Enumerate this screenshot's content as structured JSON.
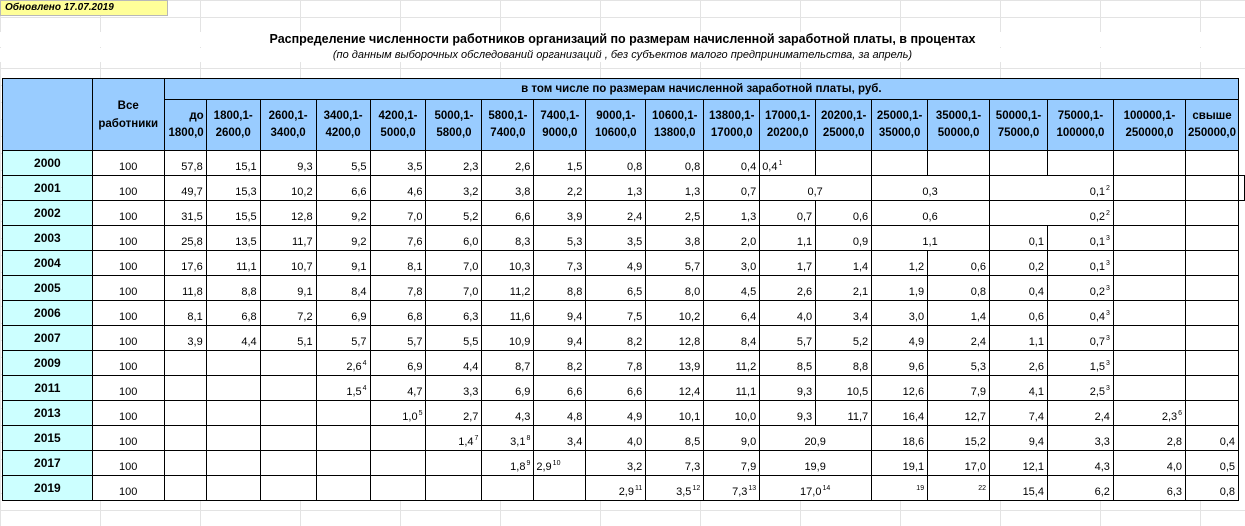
{
  "updated_label": "Обновлено 17.07.2019",
  "title": "Распределение численности работников организаций по размерам начисленной заработной платы, в процентах",
  "subtitle": "(по данным  выборочных обследований организаций , без субъектов малого предпринимательства, за апрель)",
  "header": {
    "all_workers": "Все работники",
    "span_label": "в том числе по размерам начисленной заработной платы, руб.",
    "ranges": [
      [
        "до",
        "1800,0"
      ],
      [
        "1800,1-",
        "2600,0"
      ],
      [
        "2600,1-",
        "3400,0"
      ],
      [
        "3400,1-",
        "4200,0"
      ],
      [
        "4200,1-",
        "5000,0"
      ],
      [
        "5000,1-",
        "5800,0"
      ],
      [
        "5800,1-",
        "7400,0"
      ],
      [
        "7400,1-",
        "9000,0"
      ],
      [
        "9000,1-",
        "10600,0"
      ],
      [
        "10600,1-",
        "13800,0"
      ],
      [
        "13800,1-",
        "17000,0"
      ],
      [
        "17000,1-",
        "20200,0"
      ],
      [
        "20200,1-",
        "25000,0"
      ],
      [
        "25000,1-",
        "35000,0"
      ],
      [
        "35000,1-",
        "50000,0"
      ],
      [
        "50000,1-",
        "75000,0"
      ],
      [
        "75000,1-",
        "100000,0"
      ],
      [
        "100000,1-",
        "250000,0"
      ],
      [
        "свыше",
        "250000,0"
      ]
    ]
  },
  "rows": [
    {
      "year": "2000",
      "total": "100",
      "cells": [
        {
          "v": "57,8"
        },
        {
          "v": "15,1"
        },
        {
          "v": "9,3"
        },
        {
          "v": "5,5"
        },
        {
          "v": "3,5"
        },
        {
          "v": "2,3"
        },
        {
          "v": "2,6"
        },
        {
          "v": "1,5"
        },
        {
          "v": "0,8"
        },
        {
          "v": "0,8"
        },
        {
          "v": "0,4"
        },
        {
          "v": "0,4",
          "n": "1",
          "align": "left"
        },
        {
          "v": ""
        },
        {
          "v": ""
        },
        {
          "v": ""
        },
        {
          "v": ""
        },
        {
          "v": ""
        },
        {
          "v": ""
        },
        {
          "v": ""
        }
      ]
    },
    {
      "year": "2001",
      "total": "100",
      "cells": [
        {
          "v": "49,7"
        },
        {
          "v": "15,3"
        },
        {
          "v": "10,2"
        },
        {
          "v": "6,6"
        },
        {
          "v": "4,6"
        },
        {
          "v": "3,2"
        },
        {
          "v": "3,8"
        },
        {
          "v": "2,2"
        },
        {
          "v": "1,3"
        },
        {
          "v": "1,3"
        },
        {
          "v": "0,7"
        },
        {
          "v": "0,7",
          "span": 2,
          "align": "center"
        },
        {
          "v": "0,3",
          "span": 2,
          "align": "center"
        },
        {
          "v": "0,1",
          "n": "2",
          "span": 2,
          "align": "right"
        },
        {
          "v": ""
        },
        {
          "v": ""
        },
        {
          "v": ""
        }
      ]
    },
    {
      "year": "2002",
      "total": "100",
      "cells": [
        {
          "v": "31,5"
        },
        {
          "v": "15,5"
        },
        {
          "v": "12,8"
        },
        {
          "v": "9,2"
        },
        {
          "v": "7,0"
        },
        {
          "v": "5,2"
        },
        {
          "v": "6,6"
        },
        {
          "v": "3,9"
        },
        {
          "v": "2,4"
        },
        {
          "v": "2,5"
        },
        {
          "v": "1,3"
        },
        {
          "v": "0,7"
        },
        {
          "v": "0,6"
        },
        {
          "v": "0,6",
          "span": 2,
          "align": "center"
        },
        {
          "v": "0,2",
          "n": "2",
          "span": 2,
          "align": "right"
        },
        {
          "v": ""
        },
        {
          "v": ""
        }
      ]
    },
    {
      "year": "2003",
      "total": "100",
      "cells": [
        {
          "v": "25,8"
        },
        {
          "v": "13,5"
        },
        {
          "v": "11,7"
        },
        {
          "v": "9,2"
        },
        {
          "v": "7,6"
        },
        {
          "v": "6,0"
        },
        {
          "v": "8,3"
        },
        {
          "v": "5,3"
        },
        {
          "v": "3,5"
        },
        {
          "v": "3,8"
        },
        {
          "v": "2,0"
        },
        {
          "v": "1,1"
        },
        {
          "v": "0,9"
        },
        {
          "v": "1,1",
          "span": 2,
          "align": "center"
        },
        {
          "v": "0,1"
        },
        {
          "v": "0,1",
          "n": "3"
        },
        {
          "v": ""
        },
        {
          "v": ""
        }
      ]
    },
    {
      "year": "2004",
      "total": "100",
      "cells": [
        {
          "v": "17,6"
        },
        {
          "v": "11,1"
        },
        {
          "v": "10,7"
        },
        {
          "v": "9,1"
        },
        {
          "v": "8,1"
        },
        {
          "v": "7,0"
        },
        {
          "v": "10,3"
        },
        {
          "v": "7,3"
        },
        {
          "v": "4,9"
        },
        {
          "v": "5,7"
        },
        {
          "v": "3,0"
        },
        {
          "v": "1,7"
        },
        {
          "v": "1,4"
        },
        {
          "v": "1,2"
        },
        {
          "v": "0,6"
        },
        {
          "v": "0,2"
        },
        {
          "v": "0,1",
          "n": "3"
        },
        {
          "v": ""
        },
        {
          "v": ""
        }
      ]
    },
    {
      "year": "2005",
      "total": "100",
      "cells": [
        {
          "v": "11,8"
        },
        {
          "v": "8,8"
        },
        {
          "v": "9,1"
        },
        {
          "v": "8,4"
        },
        {
          "v": "7,8"
        },
        {
          "v": "7,0"
        },
        {
          "v": "11,2"
        },
        {
          "v": "8,8"
        },
        {
          "v": "6,5"
        },
        {
          "v": "8,0"
        },
        {
          "v": "4,5"
        },
        {
          "v": "2,6"
        },
        {
          "v": "2,1"
        },
        {
          "v": "1,9"
        },
        {
          "v": "0,8"
        },
        {
          "v": "0,4"
        },
        {
          "v": "0,2",
          "n": "3"
        },
        {
          "v": ""
        },
        {
          "v": ""
        }
      ]
    },
    {
      "year": "2006",
      "total": "100",
      "cells": [
        {
          "v": "8,1"
        },
        {
          "v": "6,8"
        },
        {
          "v": "7,2"
        },
        {
          "v": "6,9"
        },
        {
          "v": "6,8"
        },
        {
          "v": "6,3"
        },
        {
          "v": "11,6"
        },
        {
          "v": "9,4"
        },
        {
          "v": "7,5"
        },
        {
          "v": "10,2"
        },
        {
          "v": "6,4"
        },
        {
          "v": "4,0"
        },
        {
          "v": "3,4"
        },
        {
          "v": "3,0"
        },
        {
          "v": "1,4"
        },
        {
          "v": "0,6"
        },
        {
          "v": "0,4",
          "n": "3"
        },
        {
          "v": ""
        },
        {
          "v": ""
        }
      ]
    },
    {
      "year": "2007",
      "total": "100",
      "cells": [
        {
          "v": "3,9"
        },
        {
          "v": "4,4"
        },
        {
          "v": "5,1"
        },
        {
          "v": "5,7"
        },
        {
          "v": "5,7"
        },
        {
          "v": "5,5"
        },
        {
          "v": "10,9"
        },
        {
          "v": "9,4"
        },
        {
          "v": "8,2"
        },
        {
          "v": "12,8"
        },
        {
          "v": "8,4"
        },
        {
          "v": "5,7"
        },
        {
          "v": "5,2"
        },
        {
          "v": "4,9"
        },
        {
          "v": "2,4"
        },
        {
          "v": "1,1"
        },
        {
          "v": "0,7",
          "n": "3"
        },
        {
          "v": ""
        },
        {
          "v": ""
        }
      ]
    },
    {
      "year": "2009",
      "total": "100",
      "cells": [
        {
          "v": ""
        },
        {
          "v": ""
        },
        {
          "v": ""
        },
        {
          "v": "2,6",
          "n": "4"
        },
        {
          "v": "6,9"
        },
        {
          "v": "4,4"
        },
        {
          "v": "8,7"
        },
        {
          "v": "8,2"
        },
        {
          "v": "7,8"
        },
        {
          "v": "13,9"
        },
        {
          "v": "11,2"
        },
        {
          "v": "8,5"
        },
        {
          "v": "8,8"
        },
        {
          "v": "9,6"
        },
        {
          "v": "5,3"
        },
        {
          "v": "2,6"
        },
        {
          "v": "1,5",
          "n": "3"
        },
        {
          "v": ""
        },
        {
          "v": ""
        }
      ]
    },
    {
      "year": "2011",
      "total": "100",
      "cells": [
        {
          "v": ""
        },
        {
          "v": ""
        },
        {
          "v": ""
        },
        {
          "v": "1,5",
          "n": "4"
        },
        {
          "v": "4,7"
        },
        {
          "v": "3,3"
        },
        {
          "v": "6,9"
        },
        {
          "v": "6,6"
        },
        {
          "v": "6,6"
        },
        {
          "v": "12,4"
        },
        {
          "v": "11,1"
        },
        {
          "v": "9,3"
        },
        {
          "v": "10,5"
        },
        {
          "v": "12,6"
        },
        {
          "v": "7,9"
        },
        {
          "v": "4,1"
        },
        {
          "v": "2,5",
          "n": "3"
        },
        {
          "v": ""
        },
        {
          "v": ""
        }
      ]
    },
    {
      "year": "2013",
      "total": "100",
      "cells": [
        {
          "v": ""
        },
        {
          "v": ""
        },
        {
          "v": ""
        },
        {
          "v": ""
        },
        {
          "v": "1,0",
          "n": "5"
        },
        {
          "v": "2,7"
        },
        {
          "v": "4,3"
        },
        {
          "v": "4,8"
        },
        {
          "v": "4,9"
        },
        {
          "v": "10,1"
        },
        {
          "v": "10,0"
        },
        {
          "v": "9,3"
        },
        {
          "v": "11,7"
        },
        {
          "v": "16,4"
        },
        {
          "v": "12,7"
        },
        {
          "v": "7,4"
        },
        {
          "v": "2,4"
        },
        {
          "v": "2,3",
          "n": "6"
        },
        {
          "v": ""
        }
      ]
    },
    {
      "year": "2015",
      "total": "100",
      "cells": [
        {
          "v": ""
        },
        {
          "v": ""
        },
        {
          "v": ""
        },
        {
          "v": ""
        },
        {
          "v": ""
        },
        {
          "v": "1,4",
          "n": "7"
        },
        {
          "v": "3,1",
          "n": "8"
        },
        {
          "v": "3,4"
        },
        {
          "v": "4,0"
        },
        {
          "v": "8,5"
        },
        {
          "v": "9,0"
        },
        {
          "v": "20,9",
          "span": 2,
          "align": "center"
        },
        {
          "v": "18,6"
        },
        {
          "v": "15,2"
        },
        {
          "v": "9,4"
        },
        {
          "v": "3,3"
        },
        {
          "v": "2,8"
        },
        {
          "v": "0,4"
        }
      ]
    },
    {
      "year": "2017",
      "total": "100",
      "cells": [
        {
          "v": ""
        },
        {
          "v": ""
        },
        {
          "v": ""
        },
        {
          "v": ""
        },
        {
          "v": ""
        },
        {
          "v": ""
        },
        {
          "v": "1,8",
          "n": "9"
        },
        {
          "v": "2,9",
          "n": "10",
          "align": "left"
        },
        {
          "v": "3,2"
        },
        {
          "v": "7,3"
        },
        {
          "v": "7,9"
        },
        {
          "v": "19,9",
          "span": 2,
          "align": "center"
        },
        {
          "v": "19,1"
        },
        {
          "v": "17,0"
        },
        {
          "v": "12,1"
        },
        {
          "v": "4,3"
        },
        {
          "v": "4,0"
        },
        {
          "v": "0,5"
        }
      ]
    },
    {
      "year": "2019",
      "total": "100",
      "cells": [
        {
          "v": ""
        },
        {
          "v": ""
        },
        {
          "v": ""
        },
        {
          "v": ""
        },
        {
          "v": ""
        },
        {
          "v": ""
        },
        {
          "v": ""
        },
        {
          "v": ""
        },
        {
          "v": "2,9",
          "n": "11"
        },
        {
          "v": "3,5",
          "n": "12"
        },
        {
          "v": "7,3",
          "n": "13"
        },
        {
          "v": "17,0",
          "n": "14",
          "span": 2,
          "align": "center"
        },
        {
          "v": "",
          "n": "19"
        },
        {
          "v": "",
          "n": "22"
        },
        {
          "v": "15,4"
        },
        {
          "v": "6,2"
        },
        {
          "v": "6,3"
        },
        {
          "v": "0,8"
        }
      ]
    }
  ]
}
